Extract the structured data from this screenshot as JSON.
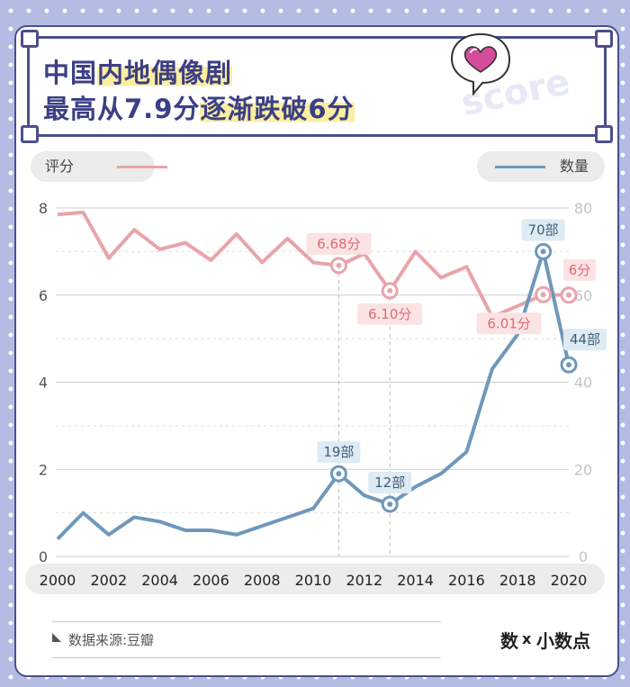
{
  "title": {
    "line1_part1": "中国",
    "line1_part2": "内地偶像剧",
    "line2_part1": "最高从7.9分",
    "line2_part2": "逐渐跌破6分"
  },
  "decoration": {
    "score_word": "score",
    "heart_icon": "heart-bubble-icon"
  },
  "legend": {
    "left_label": "评分",
    "right_label": "数量"
  },
  "source": "数据来源:豆瓣",
  "brand": {
    "part1": "数",
    "sep": "x",
    "part2": "小数点"
  },
  "colors": {
    "rating": "#e8a4aa",
    "count": "#6f98ba",
    "title": "#3b3f85",
    "accent_bg": "#b3bde3"
  },
  "chart_data": {
    "type": "line",
    "x": [
      2000,
      2001,
      2002,
      2003,
      2004,
      2005,
      2006,
      2007,
      2008,
      2009,
      2010,
      2011,
      2012,
      2013,
      2014,
      2015,
      2016,
      2017,
      2018,
      2019,
      2020
    ],
    "x_ticks": [
      2000,
      2002,
      2004,
      2006,
      2008,
      2010,
      2012,
      2014,
      2016,
      2018,
      2020
    ],
    "series": [
      {
        "name": "评分",
        "axis": "left",
        "values": [
          7.85,
          7.9,
          6.85,
          7.5,
          7.05,
          7.2,
          6.8,
          7.4,
          6.75,
          7.3,
          6.75,
          6.68,
          6.95,
          6.1,
          7.0,
          6.4,
          6.65,
          5.5,
          5.75,
          6.01,
          6.0
        ]
      },
      {
        "name": "数量",
        "axis": "right",
        "values": [
          4,
          10,
          5,
          9,
          8,
          6,
          6,
          5,
          7,
          9,
          11,
          19,
          14,
          12,
          16,
          19,
          24,
          43,
          51,
          70,
          44
        ]
      }
    ],
    "y_left": {
      "range": [
        0,
        8
      ],
      "ticks": [
        0,
        2,
        4,
        6,
        8
      ]
    },
    "y_right": {
      "range": [
        0,
        80
      ],
      "ticks": [
        0,
        20,
        40,
        60,
        80
      ]
    },
    "annotations": [
      {
        "series": "评分",
        "x": 2011,
        "label": "6.68分",
        "position": "above"
      },
      {
        "series": "评分",
        "x": 2013,
        "label": "6.10分",
        "position": "below"
      },
      {
        "series": "评分",
        "x": 2019,
        "label": "6.01分",
        "position": "below-left"
      },
      {
        "series": "评分",
        "x": 2020,
        "label": "6分",
        "position": "above-right"
      },
      {
        "series": "数量",
        "x": 2011,
        "label": "19部",
        "position": "above"
      },
      {
        "series": "数量",
        "x": 2013,
        "label": "12部",
        "position": "above"
      },
      {
        "series": "数量",
        "x": 2019,
        "label": "70部",
        "position": "above"
      },
      {
        "series": "数量",
        "x": 2020,
        "label": "44部",
        "position": "above-right"
      }
    ],
    "grid": true,
    "legend_placement": "top"
  }
}
